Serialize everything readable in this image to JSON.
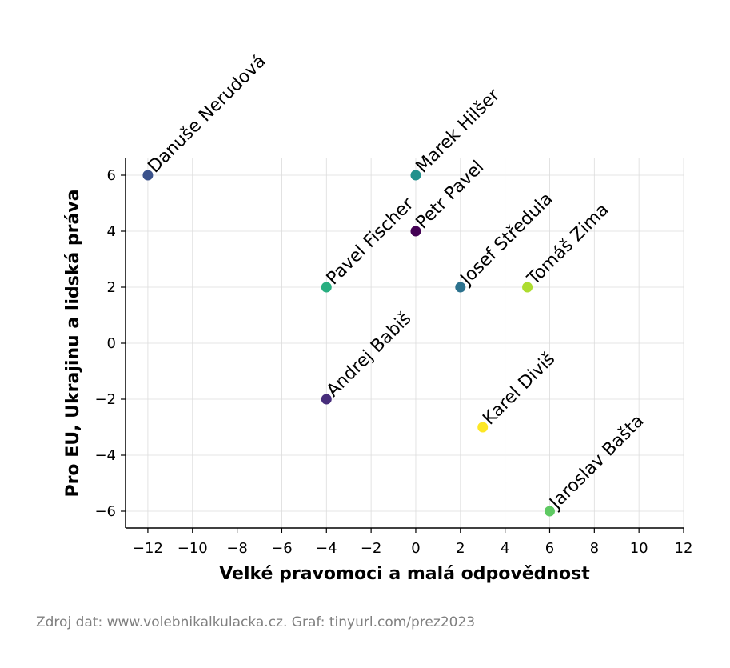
{
  "chart_data": {
    "type": "scatter",
    "title": "",
    "xlabel": "Velké pravomoci a malá odpovědnost",
    "ylabel": "Pro EU, Ukrajinu a lidská práva",
    "xlim": [
      -13,
      12
    ],
    "ylim": [
      -6.6,
      6.6
    ],
    "xticks": [
      -12,
      -10,
      -8,
      -6,
      -4,
      -2,
      0,
      2,
      4,
      6,
      8,
      10,
      12
    ],
    "yticks": [
      -6,
      -4,
      -2,
      0,
      2,
      4,
      6
    ],
    "grid": true,
    "points": [
      {
        "label": "Petr Pavel",
        "x": 0,
        "y": 4,
        "color": "#440154"
      },
      {
        "label": "Andrej Babiš",
        "x": -4,
        "y": -2,
        "color": "#472d7b"
      },
      {
        "label": "Danuše Nerudová",
        "x": -12,
        "y": 6,
        "color": "#3b528b"
      },
      {
        "label": "Josef Středula",
        "x": 2,
        "y": 2,
        "color": "#2c728e"
      },
      {
        "label": "Marek Hilšer",
        "x": 0,
        "y": 6,
        "color": "#21918c"
      },
      {
        "label": "Pavel Fischer",
        "x": -4,
        "y": 2,
        "color": "#28ae80"
      },
      {
        "label": "Jaroslav Bašta",
        "x": 6,
        "y": -6,
        "color": "#5ec962"
      },
      {
        "label": "Tomáš Zima",
        "x": 5,
        "y": 2,
        "color": "#addc30"
      },
      {
        "label": "Karel Diviš",
        "x": 3,
        "y": -3,
        "color": "#fde725"
      }
    ]
  },
  "footer": {
    "source": "Zdroj dat: www.volebnikalkulacka.cz. Graf: tinyurl.com/prez2023"
  }
}
